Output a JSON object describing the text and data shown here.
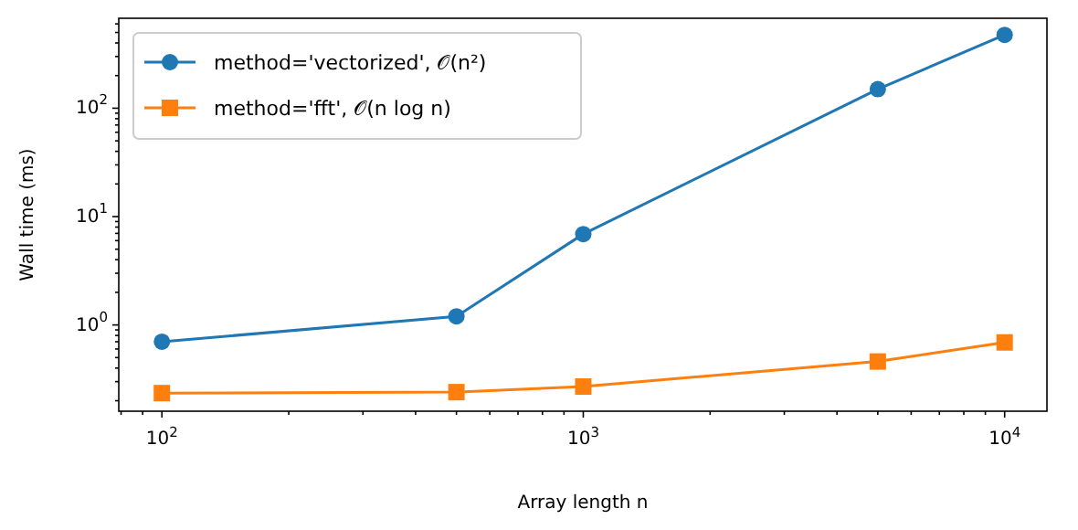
{
  "chart_data": {
    "type": "line",
    "xlabel": "Array length n",
    "ylabel": "Wall time (ms)",
    "log": "xy",
    "legend": "top left",
    "grid": false,
    "x": [
      100,
      500,
      1000,
      5000,
      10000
    ],
    "xlim": [
      79,
      12600
    ],
    "xticks": [
      {
        "value": 80,
        "label": null
      },
      {
        "value": 90,
        "label": null
      },
      {
        "value": 100,
        "label": "10$^{2}$"
      },
      {
        "value": 200,
        "label": null
      },
      {
        "value": 300,
        "label": null
      },
      {
        "value": 400,
        "label": null
      },
      {
        "value": 500,
        "label": null
      },
      {
        "value": 600,
        "label": null
      },
      {
        "value": 700,
        "label": null
      },
      {
        "value": 800,
        "label": null
      },
      {
        "value": 900,
        "label": null
      },
      {
        "value": 1000,
        "label": "10$^{3}$"
      },
      {
        "value": 2000,
        "label": null
      },
      {
        "value": 3000,
        "label": null
      },
      {
        "value": 4000,
        "label": null
      },
      {
        "value": 5000,
        "label": null
      },
      {
        "value": 6000,
        "label": null
      },
      {
        "value": 7000,
        "label": null
      },
      {
        "value": 8000,
        "label": null
      },
      {
        "value": 9000,
        "label": null
      },
      {
        "value": 10000,
        "label": "10$^{4}$"
      }
    ],
    "ylim": [
      0.16,
      676
    ],
    "yticks": [
      {
        "value": 0.2,
        "label": null
      },
      {
        "value": 0.3,
        "label": null
      },
      {
        "value": 0.4,
        "label": null
      },
      {
        "value": 0.5,
        "label": null
      },
      {
        "value": 0.6,
        "label": null
      },
      {
        "value": 0.7,
        "label": null
      },
      {
        "value": 0.8,
        "label": null
      },
      {
        "value": 0.9,
        "label": null
      },
      {
        "value": 1,
        "label": "10$^{0}$"
      },
      {
        "value": 2,
        "label": null
      },
      {
        "value": 3,
        "label": null
      },
      {
        "value": 4,
        "label": null
      },
      {
        "value": 5,
        "label": null
      },
      {
        "value": 6,
        "label": null
      },
      {
        "value": 7,
        "label": null
      },
      {
        "value": 8,
        "label": null
      },
      {
        "value": 9,
        "label": null
      },
      {
        "value": 10,
        "label": "10$^{1}$"
      },
      {
        "value": 20,
        "label": null
      },
      {
        "value": 30,
        "label": null
      },
      {
        "value": 40,
        "label": null
      },
      {
        "value": 50,
        "label": null
      },
      {
        "value": 60,
        "label": null
      },
      {
        "value": 70,
        "label": null
      },
      {
        "value": 80,
        "label": null
      },
      {
        "value": 90,
        "label": null
      },
      {
        "value": 100,
        "label": "10$^{2}$"
      },
      {
        "value": 200,
        "label": null
      },
      {
        "value": 300,
        "label": null
      },
      {
        "value": 400,
        "label": null
      },
      {
        "value": 500,
        "label": null
      },
      {
        "value": 600,
        "label": null
      }
    ],
    "series": [
      {
        "name": "method='vectorized', 𝒪(n²)",
        "color": "#1f77b4",
        "marker": "circle",
        "values": [
          0.7,
          1.2,
          6.9,
          150,
          475
        ]
      },
      {
        "name": "method='fft', 𝒪(n log n)",
        "color": "#ff7f0e",
        "marker": "square",
        "values": [
          0.235,
          0.24,
          0.27,
          0.46,
          0.69
        ]
      }
    ]
  }
}
